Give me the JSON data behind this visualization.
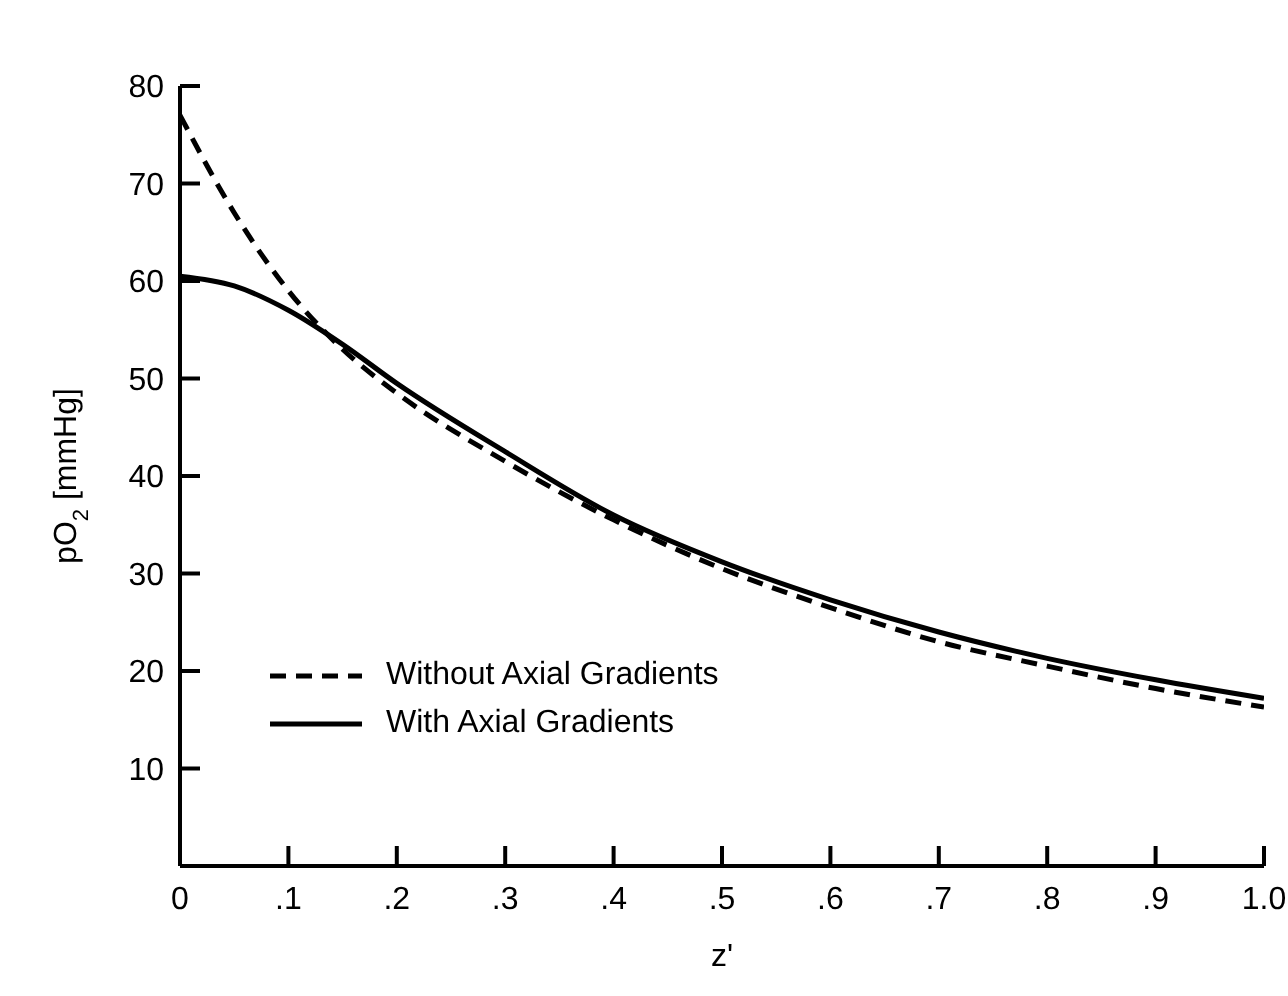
{
  "chart_data": {
    "type": "line",
    "xlabel": "z'",
    "ylabel": "pO$_{2}$ [mmHg]",
    "x": [
      0,
      0.05,
      0.1,
      0.15,
      0.2,
      0.3,
      0.4,
      0.5,
      0.6,
      0.7,
      0.8,
      0.9,
      1.0
    ],
    "series": [
      {
        "name": "Without Axial Gradients",
        "color": "#000000",
        "line_style": "dashed",
        "values": [
          77,
          67,
          59,
          53,
          48.5,
          41.5,
          35.5,
          30.5,
          26.5,
          23,
          20.5,
          18.2,
          16.3
        ]
      },
      {
        "name": "With Axial Gradients",
        "color": "#000000",
        "line_style": "solid",
        "values": [
          60.5,
          59.5,
          57,
          53.5,
          49.5,
          42.5,
          36,
          31.2,
          27.3,
          24,
          21.3,
          19.1,
          17.2
        ]
      }
    ],
    "xlim": [
      0,
      1
    ],
    "xticks": [
      {
        "value": 0,
        "label": "0"
      },
      {
        "value": 0.1,
        "label": ".1"
      },
      {
        "value": 0.2,
        "label": ".2"
      },
      {
        "value": 0.3,
        "label": ".3"
      },
      {
        "value": 0.4,
        "label": ".4"
      },
      {
        "value": 0.5,
        "label": ".5"
      },
      {
        "value": 0.6,
        "label": ".6"
      },
      {
        "value": 0.7,
        "label": ".7"
      },
      {
        "value": 0.8,
        "label": ".8"
      },
      {
        "value": 0.9,
        "label": ".9"
      },
      {
        "value": 1,
        "label": "1.0"
      }
    ],
    "ylim": [
      0,
      80
    ],
    "yticks": [
      10,
      20,
      30,
      40,
      50,
      60,
      70,
      80
    ],
    "grid": false,
    "legend": "bottom left",
    "marker": "none"
  }
}
